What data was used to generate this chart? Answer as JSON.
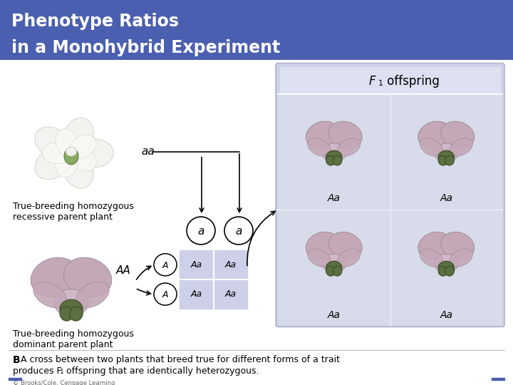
{
  "title_line1": "Phenotype Ratios",
  "title_line2": "in a Monohybrid Experiment",
  "title_bg_color": "#4a5faf",
  "title_text_color": "#ffffff",
  "main_bg_color": "#f2f2f2",
  "f1_box_bg": "#cdd0e8",
  "f1_header_bg": "#d8daea",
  "punnett_bg": "#cdd0e8",
  "caption_bold": "B",
  "caption_text1": " A cross between two plants that breed true for different forms of a trait",
  "caption_text2": "produces F",
  "caption_text3": " offspring that are identically heterozygous.",
  "copyright_text": "© Brooks/Cole, Cengage Learning",
  "label_recessive": "True-breeding homozygous\nrecessive parent plant",
  "label_dominant": "True-breeding homozygous\ndominant parent plant",
  "label_f1_main": "F",
  "label_f1_sub": "1",
  "label_f1_rest": " offspring",
  "genotype_aa": "aa",
  "genotype_AA": "AA",
  "allele_a": "a",
  "allele_A": "A",
  "punnett_cells": [
    "Aa",
    "Aa",
    "Aa",
    "Aa"
  ],
  "white_flower_color": "#f0f0ee",
  "white_flower_edge": "#c8c8c0",
  "pink_flower_color": "#c4a8b8",
  "pink_flower_edge": "#a09098",
  "green_center": "#5a7040",
  "green_center_edge": "#384828"
}
